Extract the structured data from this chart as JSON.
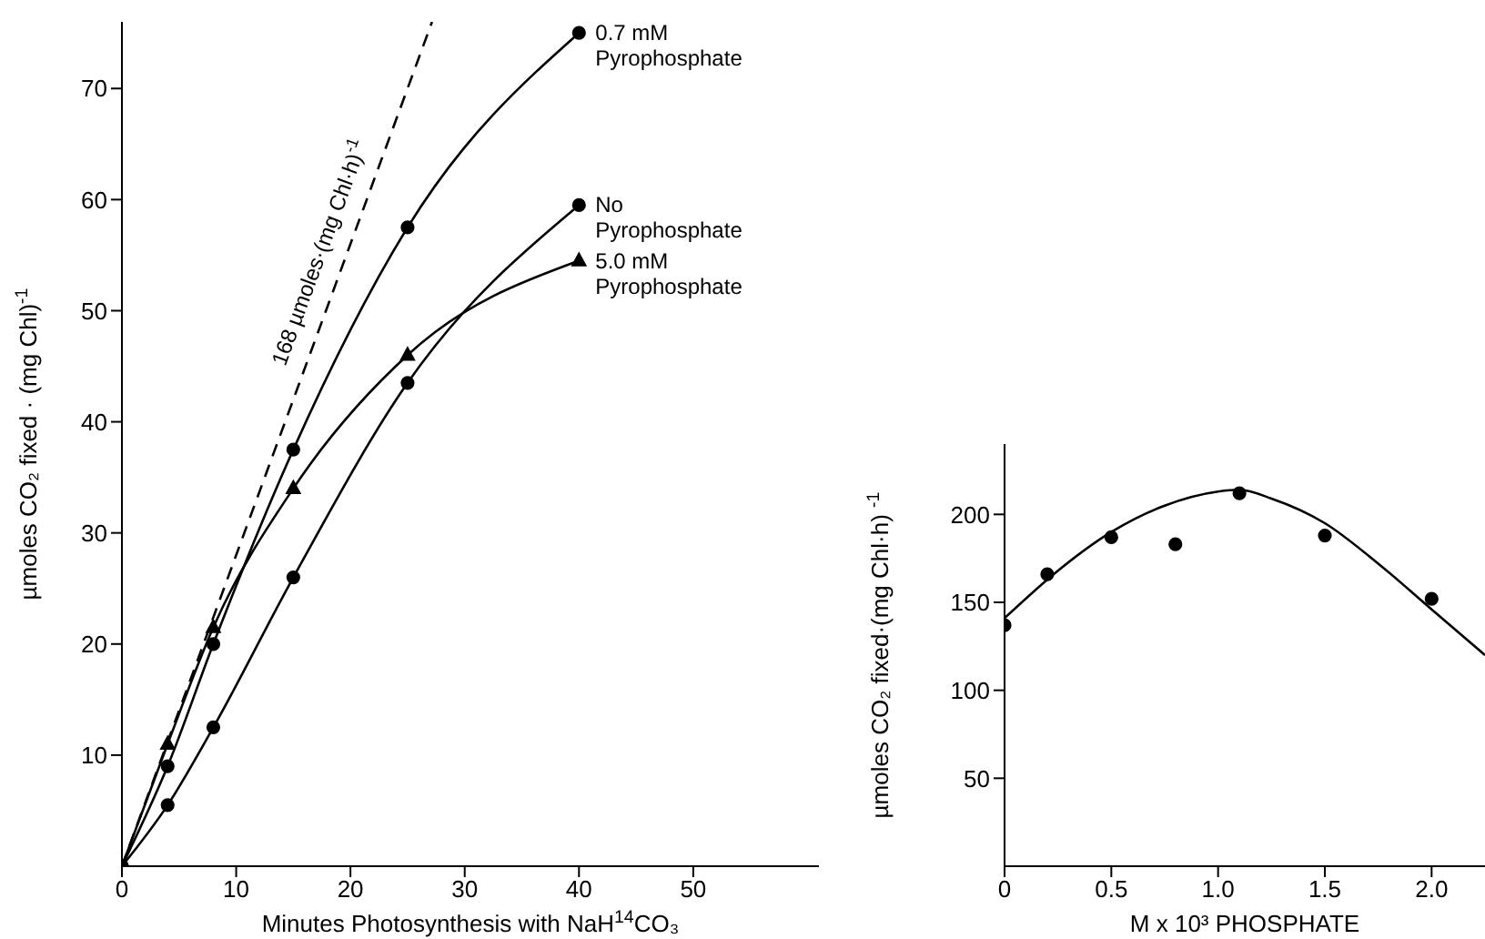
{
  "chart_data": [
    {
      "type": "line",
      "xlabel": "Minutes Photosynthesis with NaH$^{14}$CO₃",
      "ylabel": "µmoles CO₂ fixed · (mg Chl)$^{-1}$",
      "xlim": [
        0,
        61
      ],
      "ylim": [
        0,
        76
      ],
      "xticks": [
        0,
        10,
        20,
        30,
        40,
        50
      ],
      "yticks": [
        10,
        20,
        30,
        40,
        50,
        60,
        70
      ],
      "series": [
        {
          "name": "0.7 mM Pyrophosphate",
          "color": "#000000",
          "marker": "circle",
          "x": [
            0,
            4,
            8,
            15,
            25,
            40
          ],
          "values": [
            0,
            9,
            20,
            37.5,
            57.5,
            75
          ]
        },
        {
          "name": "No Pyrophosphate",
          "color": "#000000",
          "marker": "circle",
          "x": [
            0,
            4,
            8,
            15,
            25,
            40
          ],
          "values": [
            0,
            5.5,
            12.5,
            26,
            43.5,
            59.5
          ]
        },
        {
          "name": "5.0 mM Pyrophosphate",
          "color": "#000000",
          "marker": "triangle",
          "x": [
            0,
            4,
            8,
            15,
            25,
            40
          ],
          "values": [
            0,
            11,
            21.5,
            34,
            46,
            54.5
          ]
        },
        {
          "name": "168 µmoles·(mg Chl·h)$^{-1}$",
          "color": "#000000",
          "marker": "none",
          "line_style": "dashed",
          "x": [
            0,
            19.64,
            27.14
          ],
          "values": [
            0,
            55,
            76
          ]
        }
      ]
    },
    {
      "type": "scatter",
      "xlabel": "M x 10³ PHOSPHATE",
      "ylabel": "µmoles CO₂ fixed·(mg Chl·h) $^{-1}$",
      "xlim": [
        0,
        2.25
      ],
      "ylim": [
        0,
        240
      ],
      "xticks": [
        0,
        0.5,
        {
          "value": 1,
          "label": "1.0"
        },
        1.5,
        {
          "value": 2,
          "label": "2.0"
        }
      ],
      "yticks": [
        50,
        100,
        150,
        200
      ],
      "series": [
        {
          "color": "#000000",
          "marker": "circle",
          "x": [
            0,
            0.2,
            0.5,
            0.8,
            1.1,
            1.5,
            2.0
          ],
          "values": [
            137,
            166,
            187,
            183,
            212,
            188,
            152
          ]
        },
        {
          "type": "line",
          "color": "#000000",
          "marker": "none",
          "x": [
            0,
            0.25,
            0.5,
            0.75,
            1.0,
            1.1,
            1.25,
            1.5,
            1.75,
            2.0,
            2.25
          ],
          "values": [
            141,
            168,
            190,
            205,
            213,
            214,
            209,
            195,
            172,
            146,
            120
          ]
        }
      ]
    }
  ]
}
